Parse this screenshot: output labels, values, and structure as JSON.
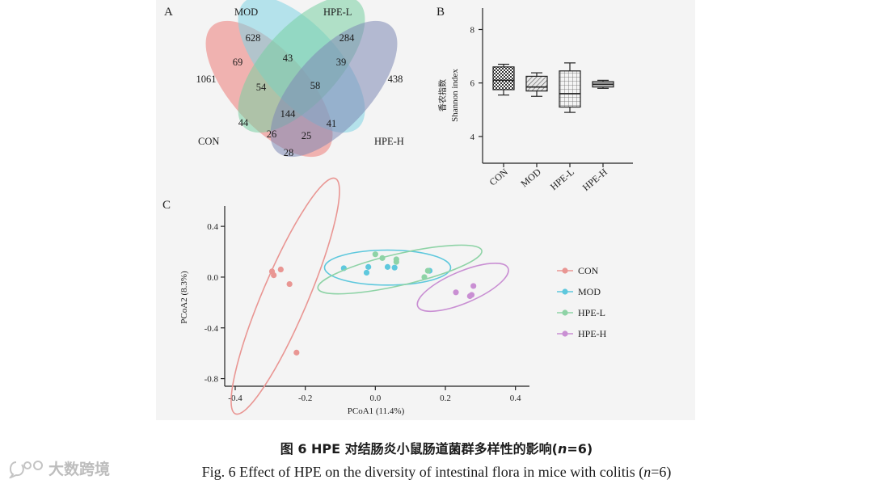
{
  "panels": {
    "a": "A",
    "b": "B",
    "c": "C"
  },
  "venn": {
    "sets": [
      "CON",
      "MOD",
      "HPE-L",
      "HPE-H"
    ],
    "colors": {
      "CON": "#ec7c78",
      "MOD": "#7fd3e4",
      "HPE-L": "#78cfa2",
      "HPE-H": "#7d88b4"
    },
    "regions": {
      "con_only": "1061",
      "mod_only": "628",
      "hpel_only": "284",
      "hpeh_only": "438",
      "con_mod": "69",
      "mod_hpel": "43",
      "hpel_hpeh": "39",
      "con_mod_hpel": "54",
      "mod_hpel_hpeh": "58",
      "all": "144",
      "con_hpel": "44",
      "mod_hpeh": "41",
      "con_hpel_hpeh": "26",
      "con_mod_hpeh": "25",
      "con_hpeh": "28"
    }
  },
  "chart_data": [
    {
      "type": "box",
      "title": "",
      "ylabel_cn": "香农指数",
      "ylabel": "Shannon index",
      "ylim": [
        3,
        8.8
      ],
      "yticks": [
        "4",
        "6",
        "8"
      ],
      "categories": [
        "CON",
        "MOD",
        "HPE-L",
        "HPE-H"
      ],
      "boxes": [
        {
          "name": "CON",
          "min": 5.55,
          "q1": 5.75,
          "median": 6.1,
          "q3": 6.6,
          "max": 6.7
        },
        {
          "name": "MOD",
          "min": 5.5,
          "q1": 5.7,
          "median": 5.85,
          "q3": 6.25,
          "max": 6.38
        },
        {
          "name": "HPE-L",
          "min": 4.9,
          "q1": 5.1,
          "median": 5.6,
          "q3": 6.45,
          "max": 6.75
        },
        {
          "name": "HPE-H",
          "min": 5.8,
          "q1": 5.85,
          "median": 5.95,
          "q3": 6.05,
          "max": 6.1
        }
      ]
    },
    {
      "type": "scatter",
      "xlabel": "PCoA1 (11.4%)",
      "ylabel": "PCoA2 (8.3%)",
      "xlim": [
        -0.43,
        0.44
      ],
      "ylim": [
        -0.86,
        0.56
      ],
      "xticks": [
        "-0.4",
        "-0.2",
        "0.0",
        "0.2",
        "0.4"
      ],
      "yticks": [
        "0.4",
        "0.0",
        "-0.4",
        "-0.8"
      ],
      "series": [
        {
          "name": "CON",
          "color": "#e99693",
          "points": [
            [
              -0.295,
              0.045
            ],
            [
              -0.29,
              0.015
            ],
            [
              -0.27,
              0.06
            ],
            [
              -0.245,
              -0.055
            ],
            [
              -0.225,
              -0.595
            ]
          ],
          "ellipse": {
            "cx": -0.257,
            "cy": -0.15,
            "rx": 0.365,
            "ry": 0.065,
            "angle": -67
          }
        },
        {
          "name": "MOD",
          "color": "#5ec8dd",
          "points": [
            [
              -0.09,
              0.07
            ],
            [
              -0.02,
              0.08
            ],
            [
              -0.025,
              0.035
            ],
            [
              0.035,
              0.08
            ],
            [
              0.055,
              0.075
            ],
            [
              0.155,
              0.05
            ]
          ],
          "ellipse": {
            "cx": 0.035,
            "cy": 0.075,
            "rx": 0.18,
            "ry": 0.05,
            "angle": 0
          }
        },
        {
          "name": "HPE-L",
          "color": "#8ed3a6",
          "points": [
            [
              0.0,
              0.18
            ],
            [
              0.02,
              0.15
            ],
            [
              0.06,
              0.12
            ],
            [
              0.06,
              0.14
            ],
            [
              0.14,
              0.0
            ],
            [
              0.15,
              0.05
            ]
          ],
          "ellipse": {
            "cx": 0.07,
            "cy": 0.06,
            "rx": 0.24,
            "ry": 0.045,
            "angle": -13
          }
        },
        {
          "name": "HPE-H",
          "color": "#c98fd3",
          "points": [
            [
              0.23,
              -0.12
            ],
            [
              0.27,
              -0.15
            ],
            [
              0.275,
              -0.14
            ],
            [
              0.28,
              -0.07
            ]
          ],
          "ellipse": {
            "cx": 0.25,
            "cy": -0.08,
            "rx": 0.14,
            "ry": 0.045,
            "angle": -23
          }
        }
      ],
      "legend": [
        "CON",
        "MOD",
        "HPE-L",
        "HPE-H"
      ]
    }
  ],
  "caption": {
    "cn_prefix": "图 6    HPE 对结肠炎小鼠肠道菌群多样性的影响(",
    "cn_n": "n",
    "cn_suffix": "=6)",
    "en_prefix": "Fig. 6    Effect of HPE on the diversity of intestinal flora in mice with colitis (",
    "en_n": "n",
    "en_suffix": "=6)"
  },
  "watermark": "大数跨境"
}
